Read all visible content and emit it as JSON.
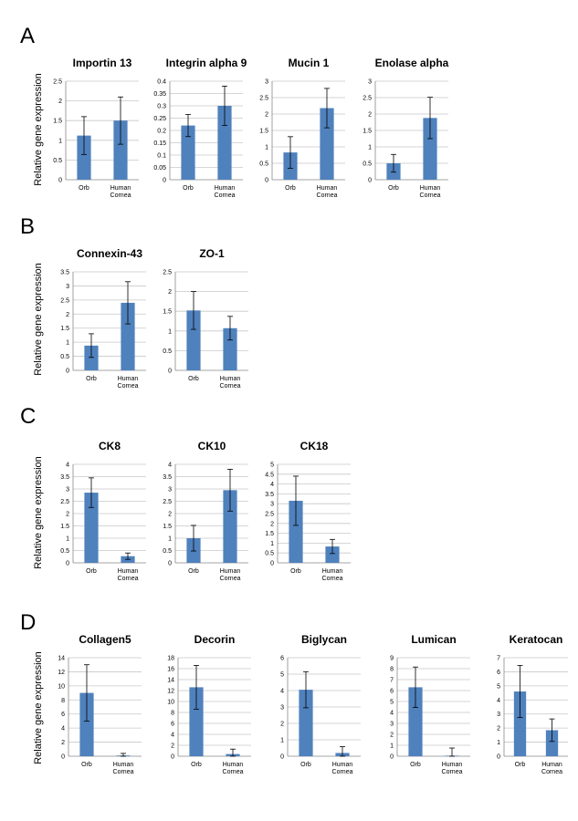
{
  "panels": [
    {
      "letter": "A",
      "ylabel": "Relative gene expression"
    },
    {
      "letter": "B",
      "ylabel": "Relative gene expression"
    },
    {
      "letter": "C",
      "ylabel": "Relative gene expression"
    },
    {
      "letter": "D",
      "ylabel": "Relative gene expression"
    }
  ],
  "colors": {
    "bar": "#4f81bd",
    "grid": "#c8c8c8",
    "axis": "#888888"
  },
  "chart_data": [
    {
      "type": "bar",
      "panel": "A",
      "title": "Importin 13",
      "categories": [
        "Orb",
        "Human|Cornea"
      ],
      "values": [
        1.12,
        1.5
      ],
      "errors": [
        0.48,
        0.6
      ],
      "yticks": [
        "0",
        "0.5",
        "1",
        "1.5",
        "2",
        "2.5"
      ],
      "ylim": [
        0,
        2.5
      ],
      "grid": true
    },
    {
      "type": "bar",
      "panel": "A",
      "title": "Integrin alpha 9",
      "categories": [
        "Orb",
        "Human|Cornea"
      ],
      "values": [
        0.22,
        0.3
      ],
      "errors": [
        0.045,
        0.08
      ],
      "yticks": [
        "0",
        "0.05",
        "0.1",
        "0.15",
        "0.2",
        "0.25",
        "0.3",
        "0.35",
        "0.4"
      ],
      "ylim": [
        0,
        0.4
      ],
      "grid": true
    },
    {
      "type": "bar",
      "panel": "A",
      "title": "Mucin 1",
      "categories": [
        "Orb",
        "Human|Cornea"
      ],
      "values": [
        0.83,
        2.18
      ],
      "errors": [
        0.48,
        0.6
      ],
      "yticks": [
        "0",
        "0.5",
        "1",
        "1.5",
        "2",
        "2.5",
        "3"
      ],
      "ylim": [
        0,
        3
      ],
      "grid": true
    },
    {
      "type": "bar",
      "panel": "A",
      "title": "Enolase alpha",
      "categories": [
        "Orb",
        "Human|Cornea"
      ],
      "values": [
        0.5,
        1.88
      ],
      "errors": [
        0.27,
        0.63
      ],
      "yticks": [
        "0",
        "0.5",
        "1",
        "1.5",
        "2",
        "2.5",
        "3"
      ],
      "ylim": [
        0,
        3
      ],
      "grid": true
    },
    {
      "type": "bar",
      "panel": "B",
      "title": "Connexin-43",
      "categories": [
        "Orb",
        "Human|Cornea"
      ],
      "values": [
        0.88,
        2.4
      ],
      "errors": [
        0.42,
        0.75
      ],
      "yticks": [
        "0",
        "0.5",
        "1",
        "1.5",
        "2",
        "2.5",
        "3",
        "3.5"
      ],
      "ylim": [
        0,
        3.5
      ],
      "grid": true
    },
    {
      "type": "bar",
      "panel": "B",
      "title": "ZO-1",
      "categories": [
        "Orb",
        "Human|Cornea"
      ],
      "values": [
        1.52,
        1.07
      ],
      "errors": [
        0.48,
        0.3
      ],
      "yticks": [
        "0",
        "0.5",
        "1",
        "1.5",
        "2",
        "2.5"
      ],
      "ylim": [
        0,
        2.5
      ],
      "grid": true
    },
    {
      "type": "bar",
      "panel": "C",
      "title": "CK8",
      "categories": [
        "Orb",
        "Human|Cornea"
      ],
      "values": [
        2.85,
        0.27
      ],
      "errors": [
        0.6,
        0.13
      ],
      "yticks": [
        "0",
        "0.5",
        "1",
        "1.5",
        "2",
        "2.5",
        "3",
        "3.5",
        "4"
      ],
      "ylim": [
        0,
        4
      ],
      "grid": true
    },
    {
      "type": "bar",
      "panel": "C",
      "title": "CK10",
      "categories": [
        "Orb",
        "Human|Cornea"
      ],
      "values": [
        1.0,
        2.95
      ],
      "errors": [
        0.52,
        0.85
      ],
      "yticks": [
        "0",
        "0.5",
        "1",
        "1.5",
        "2",
        "2.5",
        "3",
        "3.5",
        "4"
      ],
      "ylim": [
        0,
        4
      ],
      "grid": true
    },
    {
      "type": "bar",
      "panel": "C",
      "title": "CK18",
      "categories": [
        "Orb",
        "Human|Cornea"
      ],
      "values": [
        3.15,
        0.83
      ],
      "errors": [
        1.25,
        0.36
      ],
      "yticks": [
        "0",
        "0.5",
        "1",
        "1.5",
        "2",
        "2.5",
        "3",
        "3.5",
        "4",
        "4.5",
        "5"
      ],
      "ylim": [
        0,
        5
      ],
      "grid": true
    },
    {
      "type": "bar",
      "panel": "D",
      "title": "Collagen5",
      "categories": [
        "Orb",
        "Human|Cornea"
      ],
      "values": [
        9.0,
        0.1
      ],
      "errors": [
        4.0,
        0.3
      ],
      "yticks": [
        "0",
        "2",
        "4",
        "6",
        "8",
        "10",
        "12",
        "14"
      ],
      "ylim": [
        0,
        14
      ],
      "grid": true
    },
    {
      "type": "bar",
      "panel": "D",
      "title": "Decorin",
      "categories": [
        "Orb",
        "Human|Cornea"
      ],
      "values": [
        12.6,
        0.4
      ],
      "errors": [
        4.0,
        0.9
      ],
      "yticks": [
        "0",
        "2",
        "4",
        "6",
        "8",
        "10",
        "12",
        "14",
        "16",
        "18"
      ],
      "ylim": [
        0,
        18
      ],
      "grid": true
    },
    {
      "type": "bar",
      "panel": "D",
      "title": "Biglycan",
      "categories": [
        "Orb",
        "Human|Cornea"
      ],
      "values": [
        4.05,
        0.2
      ],
      "errors": [
        1.1,
        0.38
      ],
      "yticks": [
        "0",
        "1",
        "2",
        "3",
        "4",
        "5",
        "6"
      ],
      "ylim": [
        0,
        6
      ],
      "grid": true
    },
    {
      "type": "bar",
      "panel": "D",
      "title": "Lumican",
      "categories": [
        "Orb",
        "Human|Cornea"
      ],
      "values": [
        6.3,
        0.05
      ],
      "errors": [
        1.85,
        0.7
      ],
      "yticks": [
        "0",
        "1",
        "2",
        "3",
        "4",
        "5",
        "6",
        "7",
        "8",
        "9"
      ],
      "ylim": [
        0,
        9
      ],
      "grid": true
    },
    {
      "type": "bar",
      "panel": "D",
      "title": "Keratocan",
      "categories": [
        "Orb",
        "Human|Cornea"
      ],
      "values": [
        4.6,
        1.85
      ],
      "errors": [
        1.85,
        0.8
      ],
      "yticks": [
        "0",
        "1",
        "2",
        "3",
        "4",
        "5",
        "6",
        "7"
      ],
      "ylim": [
        0,
        7
      ],
      "grid": true
    }
  ]
}
